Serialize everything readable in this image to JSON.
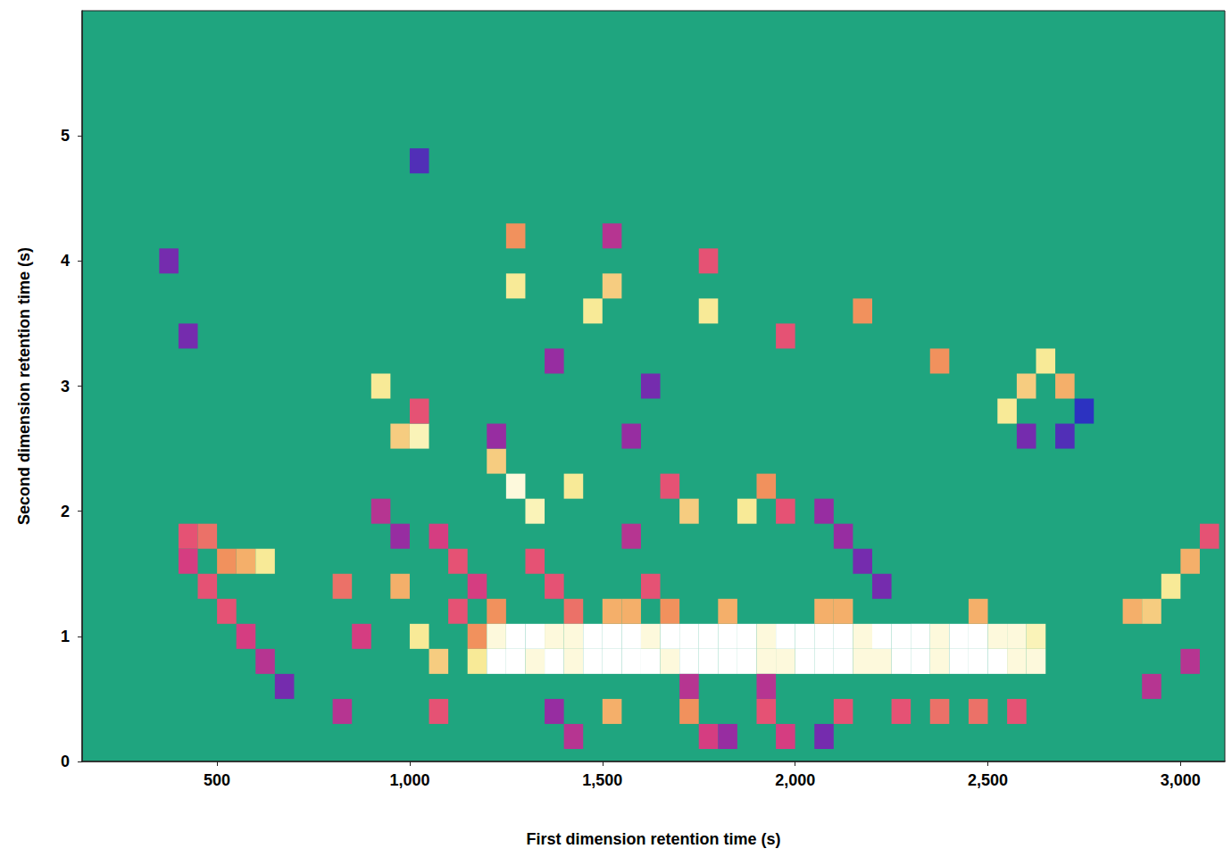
{
  "chart_data": {
    "type": "heatmap",
    "x_label": "First dimension retention time (s)",
    "y_label": "Second dimension retention time (s)",
    "xlim": [
      150,
      3115
    ],
    "xticks": [
      500,
      1000,
      1500,
      2000,
      2500,
      3000
    ],
    "ylim": [
      0,
      6
    ],
    "yticks": [
      0,
      1,
      2,
      3,
      4,
      5
    ],
    "grid": false,
    "cell_width": 50,
    "cell_height": 0.2,
    "value_range": [
      0,
      100
    ],
    "cells": [
      [
        425,
        1.8,
        60
      ],
      [
        475,
        1.8,
        65
      ],
      [
        525,
        1.6,
        70
      ],
      [
        575,
        1.6,
        75
      ],
      [
        625,
        1.6,
        85
      ],
      [
        425,
        1.6,
        55
      ],
      [
        475,
        1.4,
        60
      ],
      [
        525,
        1.2,
        60
      ],
      [
        575,
        1.0,
        55
      ],
      [
        625,
        0.8,
        50
      ],
      [
        675,
        0.6,
        40
      ],
      [
        925,
        3.0,
        85
      ],
      [
        975,
        2.6,
        80
      ],
      [
        1025,
        2.6,
        90
      ],
      [
        1025,
        2.8,
        60
      ],
      [
        825,
        1.4,
        65
      ],
      [
        875,
        1.0,
        55
      ],
      [
        825,
        0.4,
        50
      ],
      [
        975,
        1.4,
        75
      ],
      [
        1025,
        1.0,
        85
      ],
      [
        1075,
        0.8,
        80
      ],
      [
        1125,
        1.2,
        60
      ],
      [
        1175,
        1.0,
        70
      ],
      [
        1175,
        0.8,
        85
      ],
      [
        925,
        2.0,
        50
      ],
      [
        975,
        1.8,
        45
      ],
      [
        1075,
        1.8,
        55
      ],
      [
        1125,
        1.6,
        60
      ],
      [
        1175,
        1.4,
        55
      ],
      [
        1225,
        1.2,
        70
      ],
      [
        1325,
        1.6,
        60
      ],
      [
        1375,
        1.4,
        60
      ],
      [
        1425,
        1.2,
        65
      ],
      [
        1575,
        1.8,
        50
      ],
      [
        1625,
        1.4,
        60
      ],
      [
        1675,
        1.2,
        70
      ],
      [
        1225,
        0.8,
        100
      ],
      [
        1275,
        0.8,
        100
      ],
      [
        1325,
        0.8,
        95
      ],
      [
        1375,
        0.8,
        100
      ],
      [
        1425,
        0.8,
        95
      ],
      [
        1475,
        0.8,
        100
      ],
      [
        1525,
        0.8,
        100
      ],
      [
        1575,
        0.8,
        100
      ],
      [
        1625,
        0.8,
        100
      ],
      [
        1675,
        0.8,
        95
      ],
      [
        1725,
        0.8,
        100
      ],
      [
        1775,
        0.8,
        100
      ],
      [
        1825,
        0.8,
        100
      ],
      [
        1875,
        0.8,
        100
      ],
      [
        1925,
        0.8,
        95
      ],
      [
        1975,
        0.8,
        95
      ],
      [
        2025,
        0.8,
        100
      ],
      [
        2075,
        0.8,
        100
      ],
      [
        2125,
        0.8,
        100
      ],
      [
        2175,
        0.8,
        95
      ],
      [
        2225,
        0.8,
        95
      ],
      [
        2275,
        0.8,
        100
      ],
      [
        2325,
        0.8,
        100
      ],
      [
        2375,
        0.8,
        95
      ],
      [
        2425,
        0.8,
        100
      ],
      [
        2475,
        0.8,
        100
      ],
      [
        2525,
        0.8,
        100
      ],
      [
        2575,
        0.8,
        95
      ],
      [
        2625,
        0.8,
        95
      ],
      [
        1225,
        1.0,
        95
      ],
      [
        1275,
        1.0,
        100
      ],
      [
        1325,
        1.0,
        100
      ],
      [
        1375,
        1.0,
        95
      ],
      [
        1425,
        1.0,
        95
      ],
      [
        1475,
        1.0,
        100
      ],
      [
        1525,
        1.0,
        100
      ],
      [
        1575,
        1.0,
        100
      ],
      [
        1625,
        1.0,
        95
      ],
      [
        1675,
        1.0,
        100
      ],
      [
        1725,
        1.0,
        100
      ],
      [
        1775,
        1.0,
        100
      ],
      [
        1825,
        1.0,
        100
      ],
      [
        1875,
        1.0,
        100
      ],
      [
        1925,
        1.0,
        95
      ],
      [
        1975,
        1.0,
        100
      ],
      [
        2025,
        1.0,
        100
      ],
      [
        2075,
        1.0,
        100
      ],
      [
        2125,
        1.0,
        100
      ],
      [
        2175,
        1.0,
        95
      ],
      [
        2225,
        1.0,
        100
      ],
      [
        2275,
        1.0,
        100
      ],
      [
        2325,
        1.0,
        100
      ],
      [
        2375,
        1.0,
        95
      ],
      [
        2425,
        1.0,
        100
      ],
      [
        2475,
        1.0,
        100
      ],
      [
        2525,
        1.0,
        95
      ],
      [
        2575,
        1.0,
        95
      ],
      [
        2625,
        1.0,
        90
      ],
      [
        1525,
        1.2,
        75
      ],
      [
        1575,
        1.2,
        75
      ],
      [
        1825,
        1.2,
        75
      ],
      [
        2075,
        1.2,
        75
      ],
      [
        2125,
        1.2,
        75
      ],
      [
        2475,
        1.2,
        75
      ],
      [
        2875,
        1.2,
        75
      ],
      [
        2925,
        1.2,
        80
      ],
      [
        2975,
        1.4,
        85
      ],
      [
        3025,
        1.6,
        75
      ],
      [
        3075,
        1.8,
        60
      ],
      [
        2550,
        2.8,
        85
      ],
      [
        2600,
        3.0,
        80
      ],
      [
        2650,
        3.2,
        85
      ],
      [
        2700,
        3.0,
        75
      ],
      [
        2600,
        2.6,
        40
      ],
      [
        2700,
        2.6,
        35
      ],
      [
        2750,
        2.8,
        30
      ],
      [
        1275,
        2.2,
        95
      ],
      [
        1325,
        2.0,
        90
      ],
      [
        1225,
        2.4,
        80
      ],
      [
        1425,
        2.2,
        85
      ],
      [
        1275,
        3.8,
        85
      ],
      [
        1275,
        4.2,
        70
      ],
      [
        1475,
        3.6,
        85
      ],
      [
        1525,
        3.8,
        80
      ],
      [
        1525,
        4.2,
        50
      ],
      [
        1775,
        3.6,
        85
      ],
      [
        1775,
        4.0,
        60
      ],
      [
        1725,
        2.0,
        80
      ],
      [
        1675,
        2.2,
        60
      ],
      [
        1875,
        2.0,
        85
      ],
      [
        1925,
        2.2,
        70
      ],
      [
        1975,
        2.0,
        60
      ],
      [
        1975,
        3.4,
        60
      ],
      [
        2175,
        3.6,
        70
      ],
      [
        2375,
        3.2,
        70
      ],
      [
        1075,
        0.4,
        60
      ],
      [
        1525,
        0.4,
        75
      ],
      [
        1725,
        0.4,
        70
      ],
      [
        1925,
        0.4,
        60
      ],
      [
        2125,
        0.4,
        60
      ],
      [
        2275,
        0.4,
        60
      ],
      [
        2375,
        0.4,
        65
      ],
      [
        2475,
        0.4,
        65
      ],
      [
        2575,
        0.4,
        60
      ],
      [
        2925,
        0.6,
        50
      ],
      [
        3025,
        0.8,
        50
      ],
      [
        1375,
        0.4,
        45
      ],
      [
        1425,
        0.2,
        50
      ],
      [
        1725,
        0.6,
        50
      ],
      [
        1775,
        0.2,
        55
      ],
      [
        1825,
        0.2,
        45
      ],
      [
        1925,
        0.6,
        50
      ],
      [
        1975,
        0.2,
        55
      ],
      [
        2075,
        0.2,
        40
      ],
      [
        2075,
        2.0,
        45
      ],
      [
        2125,
        1.8,
        45
      ],
      [
        2175,
        1.6,
        40
      ],
      [
        2225,
        1.4,
        40
      ],
      [
        1025,
        4.8,
        35
      ],
      [
        375,
        4.0,
        40
      ],
      [
        425,
        3.4,
        40
      ],
      [
        1375,
        3.2,
        45
      ],
      [
        1625,
        3.0,
        40
      ],
      [
        1225,
        2.6,
        45
      ],
      [
        1575,
        2.6,
        45
      ]
    ]
  }
}
